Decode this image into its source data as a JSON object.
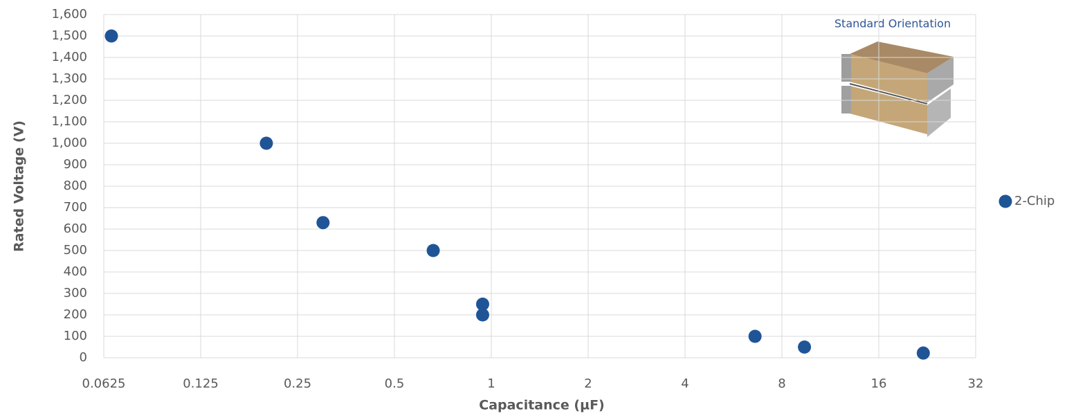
{
  "chart_data": {
    "type": "scatter",
    "x_label": "Capacitance (µF)",
    "y_label": "Rated Voltage (V)",
    "annotation": "Standard Orientation",
    "xscale": "log",
    "grid": true,
    "legend": "right",
    "xlim": [
      0.0625,
      32
    ],
    "xticks": [
      0.0625,
      0.125,
      0.25,
      0.5,
      1,
      2,
      4,
      8,
      16,
      32
    ],
    "ylim": [
      0,
      1600
    ],
    "yticks": [
      0,
      100,
      200,
      300,
      400,
      500,
      600,
      700,
      800,
      900,
      {
        "value": 1000,
        "label": "1,000"
      },
      {
        "value": 1100,
        "label": "1,100"
      },
      {
        "value": 1200,
        "label": "1,200"
      },
      {
        "value": 1300,
        "label": "1,300"
      },
      {
        "value": 1400,
        "label": "1,400"
      },
      {
        "value": 1500,
        "label": "1,500"
      },
      {
        "value": 1600,
        "label": "1,600"
      }
    ],
    "series": [
      {
        "name": "2-Chip",
        "color": "#1f5597",
        "x": [
          0.066,
          0.2,
          0.3,
          0.66,
          0.94,
          0.94,
          6.6,
          9.4,
          22
        ],
        "values": [
          1500,
          1000,
          630,
          500,
          250,
          200,
          100,
          50,
          22
        ]
      }
    ]
  }
}
